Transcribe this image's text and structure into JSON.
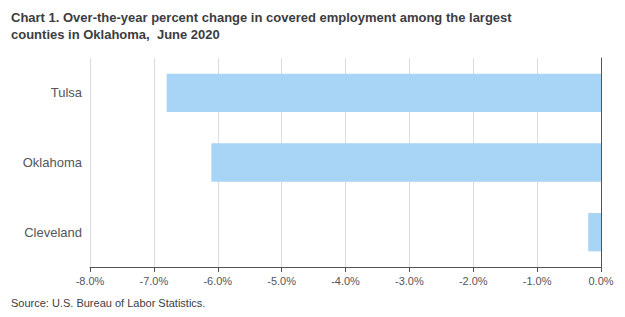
{
  "chart_data": {
    "type": "bar",
    "orientation": "horizontal",
    "title": "Chart 1. Over-the-year percent change in covered employment among the largest\ncounties in Oklahoma,  June 2020",
    "annotations": [
      "Source: U.S. Bureau of Labor Statistics."
    ],
    "categories": [
      "Cleveland",
      "Oklahoma",
      "Tulsa"
    ],
    "values": [
      -0.2,
      -6.1,
      -6.8
    ],
    "color": "#a8d4f5",
    "xlim": [
      -8.0,
      0.0
    ],
    "xticks": [
      {
        "value": -8.0,
        "label": "-8.0%"
      },
      {
        "value": -7.0,
        "label": "-7.0%"
      },
      {
        "value": -6.0,
        "label": "-6.0%"
      },
      {
        "value": -5.0,
        "label": "-5.0%"
      },
      {
        "value": -4.0,
        "label": "-4.0%"
      },
      {
        "value": -3.0,
        "label": "-3.0%"
      },
      {
        "value": -2.0,
        "label": "-2.0%"
      },
      {
        "value": -1.0,
        "label": "-1.0%"
      },
      {
        "value": 0.0,
        "label": "0.0%"
      }
    ],
    "grid": true
  }
}
